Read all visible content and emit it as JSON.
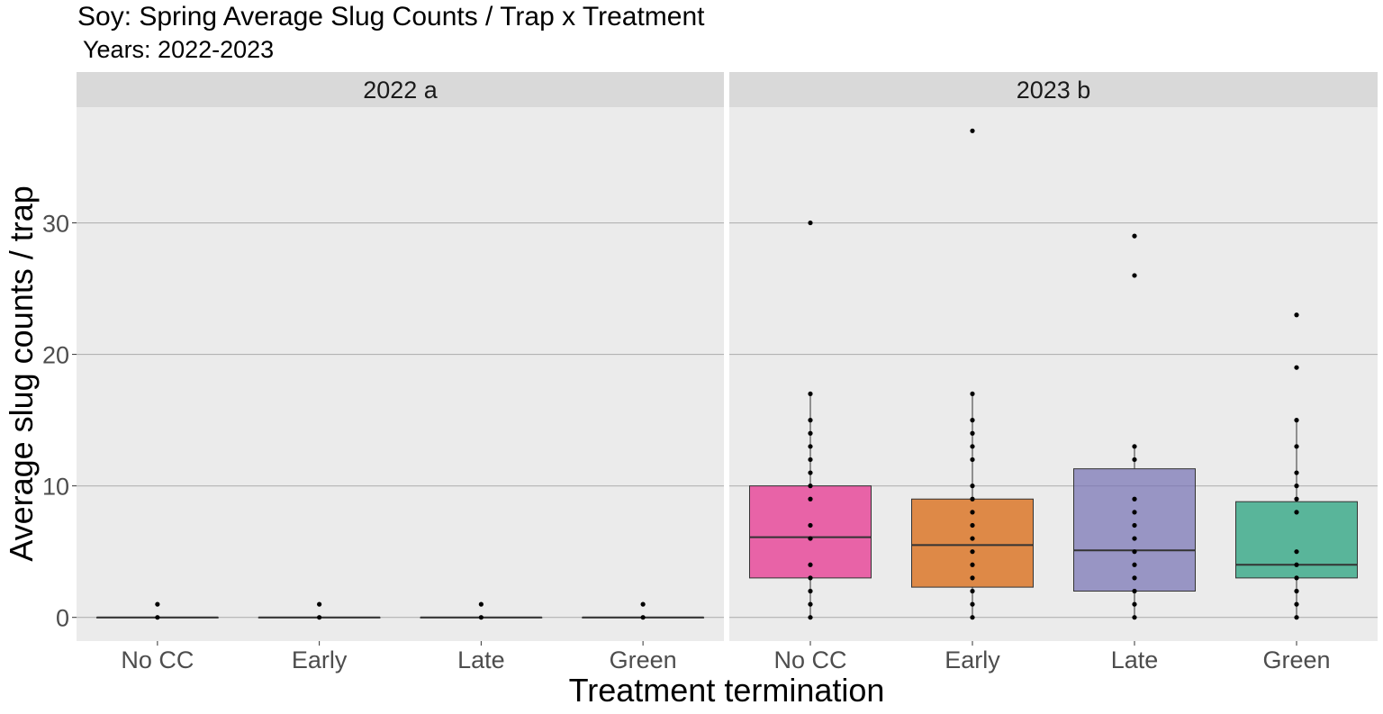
{
  "title": "Soy: Spring Average Slug Counts / Trap x Treatment",
  "subtitle": " Years: 2022-2023",
  "chart_data": {
    "type": "box",
    "xlabel": "Treatment termination",
    "ylabel": "Average slug counts / trap",
    "categories": [
      "No CC",
      "Early",
      "Late",
      "Green"
    ],
    "ylim": [
      -1.8,
      38.8
    ],
    "yticks": [
      0,
      10,
      20,
      30
    ],
    "grid": true,
    "legend": "none",
    "fill_colors": {
      "No CC": "#E7298A",
      "Early": "#D95F02",
      "Late": "#7570B3",
      "Green": "#1B9E77"
    },
    "panels": [
      {
        "label": "2022 a",
        "boxes": [
          {
            "category": "No CC",
            "q1": 0,
            "median": 0,
            "q3": 0,
            "whisker_low": 0,
            "whisker_high": 0
          },
          {
            "category": "Early",
            "q1": 0,
            "median": 0,
            "q3": 0,
            "whisker_low": 0,
            "whisker_high": 0
          },
          {
            "category": "Late",
            "q1": 0,
            "median": 0,
            "q3": 0,
            "whisker_low": 0,
            "whisker_high": 0
          },
          {
            "category": "Green",
            "q1": 0,
            "median": 0,
            "q3": 0,
            "whisker_low": 0,
            "whisker_high": 0
          }
        ],
        "points": [
          {
            "category": "No CC",
            "values": [
              0,
              1
            ]
          },
          {
            "category": "Early",
            "values": [
              0,
              1
            ]
          },
          {
            "category": "Late",
            "values": [
              0,
              1
            ]
          },
          {
            "category": "Green",
            "values": [
              0,
              1
            ]
          }
        ]
      },
      {
        "label": "2023 b",
        "boxes": [
          {
            "category": "No CC",
            "q1": 3,
            "median": 6.1,
            "q3": 10,
            "whisker_low": 0,
            "whisker_high": 17
          },
          {
            "category": "Early",
            "q1": 2.3,
            "median": 5.5,
            "q3": 9,
            "whisker_low": 0,
            "whisker_high": 17
          },
          {
            "category": "Late",
            "q1": 2,
            "median": 5.1,
            "q3": 11.3,
            "whisker_low": 0,
            "whisker_high": 13
          },
          {
            "category": "Green",
            "q1": 3,
            "median": 4,
            "q3": 8.8,
            "whisker_low": 0,
            "whisker_high": 15
          }
        ],
        "points": [
          {
            "category": "No CC",
            "values": [
              0,
              1,
              2,
              3,
              4,
              6,
              7,
              9,
              10,
              11,
              12,
              13,
              14,
              15,
              17,
              30
            ]
          },
          {
            "category": "Early",
            "values": [
              0,
              1,
              2,
              3,
              4,
              5,
              6,
              7,
              8,
              9,
              10,
              12,
              13,
              14,
              15,
              17,
              37
            ]
          },
          {
            "category": "Late",
            "values": [
              0,
              1,
              2,
              3,
              4,
              5,
              6,
              7,
              8,
              9,
              12,
              13,
              26,
              29
            ]
          },
          {
            "category": "Green",
            "values": [
              0,
              1,
              2,
              3,
              4,
              5,
              8,
              9,
              10,
              11,
              13,
              15,
              19,
              23
            ]
          }
        ]
      }
    ]
  }
}
